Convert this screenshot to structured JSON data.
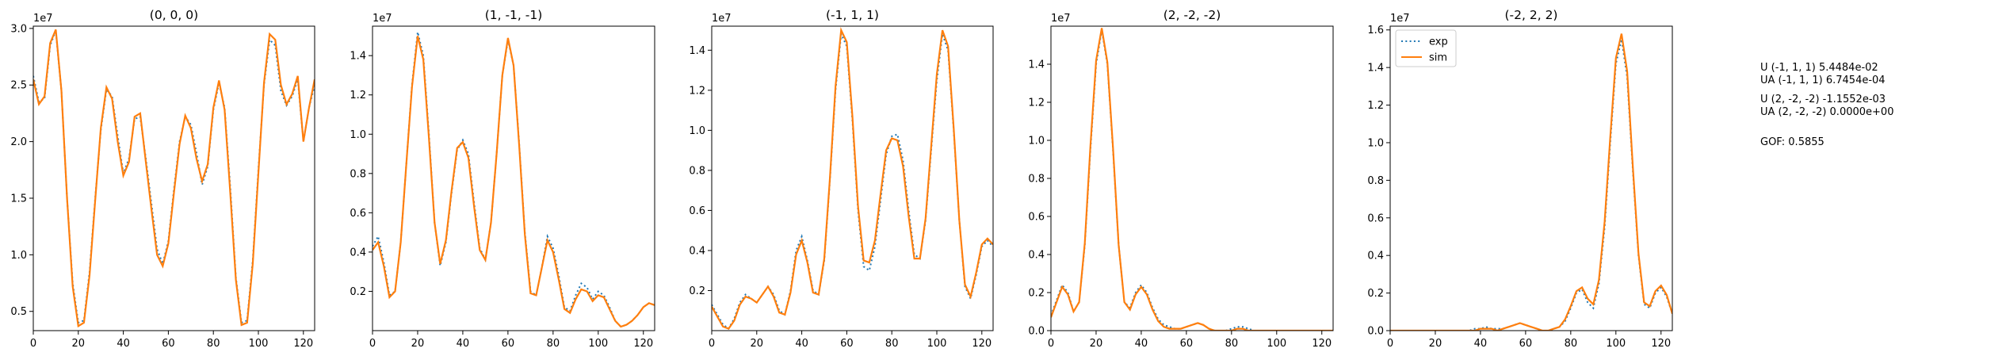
{
  "colors": {
    "exp": "#1f77b4",
    "sim": "#ff7f0e",
    "axis": "#000000"
  },
  "legend": {
    "location": "upper-left",
    "entries": [
      "exp",
      "sim"
    ]
  },
  "annotations": {
    "group1": [
      "U (-1, 1, 1) 5.4484e-02",
      "UA (-1, 1, 1) 6.7454e-04"
    ],
    "group2": [
      "U (2, -2, -2) -1.1552e-03",
      "UA (2, -2, -2) 0.0000e+00"
    ],
    "gof": "GOF: 0.5855"
  },
  "chart_data": [
    {
      "type": "line",
      "title": "(0, 0, 0)",
      "offset_label": "1e7",
      "xlim": [
        0,
        125
      ],
      "ylim": [
        0.33,
        3.02
      ],
      "xticks": [
        0,
        20,
        40,
        60,
        80,
        100,
        120
      ],
      "yticks": [
        0.5,
        1.0,
        1.5,
        2.0,
        2.5,
        3.0
      ],
      "ytick_labels": [
        "0.5",
        "1.0",
        "1.5",
        "2.0",
        "2.5",
        "3.0"
      ],
      "x": [
        0,
        2.5,
        5,
        7.5,
        10,
        12.5,
        15,
        17.5,
        20,
        22.5,
        25,
        27.5,
        30,
        32.5,
        35,
        37.5,
        40,
        42.5,
        45,
        47.5,
        50,
        52.5,
        55,
        57.5,
        60,
        62.5,
        65,
        67.5,
        70,
        72.5,
        75,
        77.5,
        80,
        82.5,
        85,
        87.5,
        90,
        92.5,
        95,
        97.5,
        100,
        102.5,
        105,
        107.5,
        110,
        112.5,
        115,
        117.5,
        120,
        122.5,
        125
      ],
      "series": [
        {
          "name": "exp",
          "values": [
            2.58,
            2.35,
            2.38,
            2.85,
            2.98,
            2.45,
            1.5,
            0.75,
            0.4,
            0.42,
            0.85,
            1.5,
            2.1,
            2.46,
            2.4,
            2.05,
            1.72,
            1.85,
            2.2,
            2.22,
            1.85,
            1.45,
            1.05,
            0.92,
            1.12,
            1.58,
            2.0,
            2.22,
            2.15,
            1.9,
            1.62,
            1.78,
            2.28,
            2.52,
            2.3,
            1.6,
            0.8,
            0.4,
            0.42,
            0.95,
            1.75,
            2.5,
            2.9,
            2.85,
            2.45,
            2.32,
            2.4,
            2.55,
            2.0,
            2.3,
            2.5
          ]
        },
        {
          "name": "sim",
          "values": [
            2.55,
            2.33,
            2.4,
            2.87,
            2.99,
            2.45,
            1.5,
            0.72,
            0.37,
            0.4,
            0.82,
            1.48,
            2.12,
            2.48,
            2.38,
            2.0,
            1.7,
            1.82,
            2.22,
            2.25,
            1.82,
            1.4,
            1.0,
            0.9,
            1.1,
            1.55,
            1.98,
            2.23,
            2.12,
            1.85,
            1.65,
            1.8,
            2.3,
            2.54,
            2.28,
            1.55,
            0.78,
            0.38,
            0.4,
            0.92,
            1.72,
            2.52,
            2.95,
            2.9,
            2.5,
            2.33,
            2.42,
            2.58,
            2.0,
            2.3,
            2.55
          ]
        }
      ]
    },
    {
      "type": "line",
      "title": "(1, -1, -1)",
      "offset_label": "1e7",
      "xlim": [
        0,
        125
      ],
      "ylim": [
        0.0,
        1.55
      ],
      "xticks": [
        0,
        20,
        40,
        60,
        80,
        100,
        120
      ],
      "yticks": [
        0.2,
        0.4,
        0.6,
        0.8,
        1.0,
        1.2,
        1.4
      ],
      "ytick_labels": [
        "0.2",
        "0.4",
        "0.6",
        "0.8",
        "1.0",
        "1.2",
        "1.4"
      ],
      "x": [
        0,
        2.5,
        5,
        7.5,
        10,
        12.5,
        15,
        17.5,
        20,
        22.5,
        25,
        27.5,
        30,
        32.5,
        35,
        37.5,
        40,
        42.5,
        45,
        47.5,
        50,
        52.5,
        55,
        57.5,
        60,
        62.5,
        65,
        67.5,
        70,
        72.5,
        75,
        77.5,
        80,
        82.5,
        85,
        87.5,
        90,
        92.5,
        95,
        97.5,
        100,
        102.5,
        105,
        107.5,
        110,
        112.5,
        115,
        117.5,
        120,
        122.5,
        125
      ],
      "series": [
        {
          "name": "exp",
          "values": [
            0.43,
            0.48,
            0.35,
            0.18,
            0.2,
            0.45,
            0.85,
            1.25,
            1.52,
            1.4,
            1.0,
            0.55,
            0.33,
            0.45,
            0.7,
            0.92,
            0.97,
            0.9,
            0.65,
            0.42,
            0.36,
            0.55,
            0.9,
            1.3,
            1.48,
            1.35,
            0.95,
            0.5,
            0.2,
            0.18,
            0.32,
            0.48,
            0.42,
            0.28,
            0.12,
            0.1,
            0.18,
            0.24,
            0.22,
            0.16,
            0.2,
            0.18,
            0.12,
            0.05,
            0.02,
            0.03,
            0.05,
            0.08,
            0.12,
            0.14,
            0.13
          ]
        },
        {
          "name": "sim",
          "values": [
            0.41,
            0.45,
            0.33,
            0.17,
            0.2,
            0.45,
            0.85,
            1.24,
            1.5,
            1.38,
            0.98,
            0.55,
            0.34,
            0.46,
            0.71,
            0.93,
            0.96,
            0.88,
            0.63,
            0.41,
            0.36,
            0.55,
            0.9,
            1.3,
            1.49,
            1.35,
            0.94,
            0.49,
            0.19,
            0.18,
            0.32,
            0.46,
            0.4,
            0.26,
            0.11,
            0.09,
            0.16,
            0.21,
            0.2,
            0.15,
            0.18,
            0.17,
            0.11,
            0.05,
            0.02,
            0.03,
            0.05,
            0.08,
            0.12,
            0.14,
            0.13
          ]
        }
      ]
    },
    {
      "type": "line",
      "title": "(-1, 1, 1)",
      "offset_label": "1e7",
      "xlim": [
        0,
        125
      ],
      "ylim": [
        0.0,
        1.52
      ],
      "xticks": [
        0,
        20,
        40,
        60,
        80,
        100,
        120
      ],
      "yticks": [
        0.2,
        0.4,
        0.6,
        0.8,
        1.0,
        1.2,
        1.4
      ],
      "ytick_labels": [
        "0.2",
        "0.4",
        "0.6",
        "0.8",
        "1.0",
        "1.2",
        "1.4"
      ],
      "x": [
        0,
        2.5,
        5,
        7.5,
        10,
        12.5,
        15,
        17.5,
        20,
        22.5,
        25,
        27.5,
        30,
        32.5,
        35,
        37.5,
        40,
        42.5,
        45,
        47.5,
        50,
        52.5,
        55,
        57.5,
        60,
        62.5,
        65,
        67.5,
        70,
        72.5,
        75,
        77.5,
        80,
        82.5,
        85,
        87.5,
        90,
        92.5,
        95,
        97.5,
        100,
        102.5,
        105,
        107.5,
        110,
        112.5,
        115,
        117.5,
        120,
        122.5,
        125
      ],
      "series": [
        {
          "name": "exp",
          "values": [
            0.13,
            0.08,
            0.03,
            0.01,
            0.06,
            0.14,
            0.18,
            0.16,
            0.14,
            0.18,
            0.22,
            0.18,
            0.1,
            0.08,
            0.2,
            0.4,
            0.47,
            0.35,
            0.2,
            0.18,
            0.35,
            0.75,
            1.2,
            1.48,
            1.42,
            1.05,
            0.6,
            0.32,
            0.3,
            0.42,
            0.65,
            0.88,
            0.97,
            0.98,
            0.85,
            0.6,
            0.38,
            0.36,
            0.55,
            0.9,
            1.25,
            1.48,
            1.4,
            1.0,
            0.55,
            0.22,
            0.16,
            0.28,
            0.42,
            0.45,
            0.42
          ]
        },
        {
          "name": "sim",
          "values": [
            0.12,
            0.07,
            0.02,
            0.01,
            0.05,
            0.13,
            0.17,
            0.16,
            0.14,
            0.18,
            0.22,
            0.17,
            0.09,
            0.08,
            0.19,
            0.38,
            0.45,
            0.34,
            0.19,
            0.18,
            0.36,
            0.76,
            1.22,
            1.5,
            1.44,
            1.07,
            0.62,
            0.35,
            0.34,
            0.45,
            0.68,
            0.9,
            0.96,
            0.95,
            0.82,
            0.57,
            0.36,
            0.36,
            0.56,
            0.92,
            1.28,
            1.5,
            1.42,
            1.01,
            0.55,
            0.23,
            0.17,
            0.29,
            0.43,
            0.46,
            0.43
          ]
        }
      ]
    },
    {
      "type": "line",
      "title": "(2, -2, -2)",
      "offset_label": "1e7",
      "xlim": [
        0,
        125
      ],
      "ylim": [
        0.0,
        1.6
      ],
      "xticks": [
        0,
        20,
        40,
        60,
        80,
        100,
        120
      ],
      "yticks": [
        0.0,
        0.2,
        0.4,
        0.6,
        0.8,
        1.0,
        1.2,
        1.4
      ],
      "ytick_labels": [
        "0.0",
        "0.2",
        "0.4",
        "0.6",
        "0.8",
        "1.0",
        "1.2",
        "1.4"
      ],
      "x": [
        0,
        2.5,
        5,
        7.5,
        10,
        12.5,
        15,
        17.5,
        20,
        22.5,
        25,
        27.5,
        30,
        32.5,
        35,
        37.5,
        40,
        42.5,
        45,
        47.5,
        50,
        52.5,
        55,
        57.5,
        60,
        62.5,
        65,
        67.5,
        70,
        72.5,
        75,
        77.5,
        80,
        82.5,
        85,
        87.5,
        90,
        92.5,
        95,
        97.5,
        100,
        102.5,
        105,
        107.5,
        110,
        112.5,
        115,
        117.5,
        120,
        122.5,
        125
      ],
      "series": [
        {
          "name": "exp",
          "values": [
            0.08,
            0.16,
            0.24,
            0.2,
            0.1,
            0.15,
            0.45,
            0.95,
            1.4,
            1.58,
            1.4,
            0.95,
            0.45,
            0.15,
            0.12,
            0.2,
            0.24,
            0.2,
            0.12,
            0.06,
            0.03,
            0.02,
            0.01,
            0.01,
            0.02,
            0.03,
            0.04,
            0.03,
            0.01,
            0.0,
            0.0,
            0.0,
            0.01,
            0.02,
            0.02,
            0.01,
            0.0,
            0.0,
            0.0,
            0.0,
            0.0,
            0.0,
            0.0,
            0.0,
            0.0,
            0.0,
            0.0,
            0.0,
            0.0,
            0.0,
            0.0
          ]
        },
        {
          "name": "sim",
          "values": [
            0.07,
            0.15,
            0.23,
            0.19,
            0.1,
            0.15,
            0.46,
            0.97,
            1.42,
            1.59,
            1.41,
            0.96,
            0.45,
            0.15,
            0.11,
            0.19,
            0.23,
            0.19,
            0.11,
            0.05,
            0.02,
            0.01,
            0.01,
            0.01,
            0.02,
            0.03,
            0.04,
            0.03,
            0.01,
            0.0,
            0.0,
            0.0,
            0.0,
            0.01,
            0.01,
            0.0,
            0.0,
            0.0,
            0.0,
            0.0,
            0.0,
            0.0,
            0.0,
            0.0,
            0.0,
            0.0,
            0.0,
            0.0,
            0.0,
            0.0,
            0.0
          ]
        }
      ]
    },
    {
      "type": "line",
      "title": "(-2, 2, 2)",
      "offset_label": "1e7",
      "xlim": [
        0,
        125
      ],
      "ylim": [
        0.0,
        1.62
      ],
      "xticks": [
        0,
        20,
        40,
        60,
        80,
        100,
        120
      ],
      "yticks": [
        0.0,
        0.2,
        0.4,
        0.6,
        0.8,
        1.0,
        1.2,
        1.4,
        1.6
      ],
      "ytick_labels": [
        "0.0",
        "0.2",
        "0.4",
        "0.6",
        "0.8",
        "1.0",
        "1.2",
        "1.4",
        "1.6"
      ],
      "x": [
        0,
        2.5,
        5,
        7.5,
        10,
        12.5,
        15,
        17.5,
        20,
        22.5,
        25,
        27.5,
        30,
        32.5,
        35,
        37.5,
        40,
        42.5,
        45,
        47.5,
        50,
        52.5,
        55,
        57.5,
        60,
        62.5,
        65,
        67.5,
        70,
        72.5,
        75,
        77.5,
        80,
        82.5,
        85,
        87.5,
        90,
        92.5,
        95,
        97.5,
        100,
        102.5,
        105,
        107.5,
        110,
        112.5,
        115,
        117.5,
        120,
        122.5,
        125
      ],
      "series": [
        {
          "name": "exp",
          "values": [
            0.0,
            0.0,
            0.0,
            0.0,
            0.0,
            0.0,
            0.0,
            0.0,
            0.0,
            0.0,
            0.0,
            0.0,
            0.0,
            0.0,
            0.0,
            0.01,
            0.01,
            0.02,
            0.01,
            0.01,
            0.01,
            0.02,
            0.03,
            0.04,
            0.03,
            0.02,
            0.01,
            0.0,
            0.0,
            0.01,
            0.02,
            0.05,
            0.12,
            0.2,
            0.22,
            0.15,
            0.12,
            0.25,
            0.55,
            1.0,
            1.42,
            1.55,
            1.35,
            0.85,
            0.4,
            0.14,
            0.12,
            0.2,
            0.23,
            0.18,
            0.09
          ]
        },
        {
          "name": "sim",
          "values": [
            0.0,
            0.0,
            0.0,
            0.0,
            0.0,
            0.0,
            0.0,
            0.0,
            0.0,
            0.0,
            0.0,
            0.0,
            0.0,
            0.0,
            0.0,
            0.0,
            0.01,
            0.01,
            0.01,
            0.0,
            0.01,
            0.02,
            0.03,
            0.04,
            0.03,
            0.02,
            0.01,
            0.0,
            0.0,
            0.01,
            0.02,
            0.06,
            0.13,
            0.21,
            0.23,
            0.17,
            0.14,
            0.27,
            0.58,
            1.03,
            1.45,
            1.58,
            1.38,
            0.87,
            0.41,
            0.15,
            0.13,
            0.21,
            0.24,
            0.19,
            0.09
          ]
        }
      ]
    }
  ]
}
